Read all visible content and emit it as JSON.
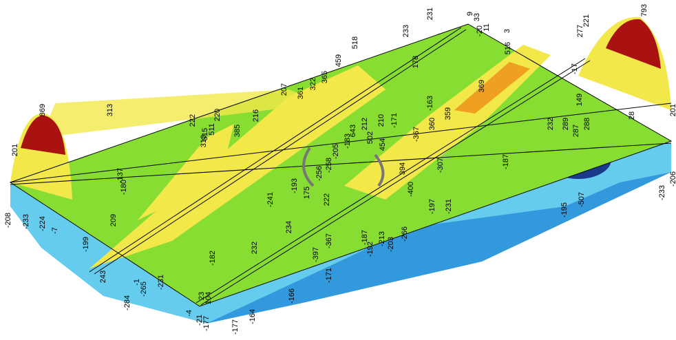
{
  "labels": [
    869,
    201,
    -208,
    -233,
    -224,
    -7,
    313,
    222,
    220,
    511,
    515,
    313,
    385,
    216,
    207,
    361,
    322,
    365,
    459,
    518,
    233,
    231,
    9,
    33,
    -20,
    11,
    3,
    178,
    516,
    277,
    221,
    793,
    201,
    -206,
    -233,
    -17,
    149,
    28,
    232,
    289,
    287,
    288,
    -187,
    -195,
    -507,
    369,
    -163,
    359,
    360,
    -171,
    210,
    -367,
    212,
    502,
    454,
    643,
    394,
    -183,
    -205,
    -258,
    -256,
    -193,
    175,
    222,
    -241,
    -400,
    -307,
    -197,
    -231,
    -180,
    -137,
    209,
    -199,
    -182,
    232,
    234,
    -397,
    -367,
    -266,
    -187,
    -192,
    -213,
    -203,
    -171,
    -166,
    243,
    -284,
    -265,
    -231,
    -1,
    23,
    104,
    -4,
    -21,
    -177,
    -177,
    -164
  ]
}
